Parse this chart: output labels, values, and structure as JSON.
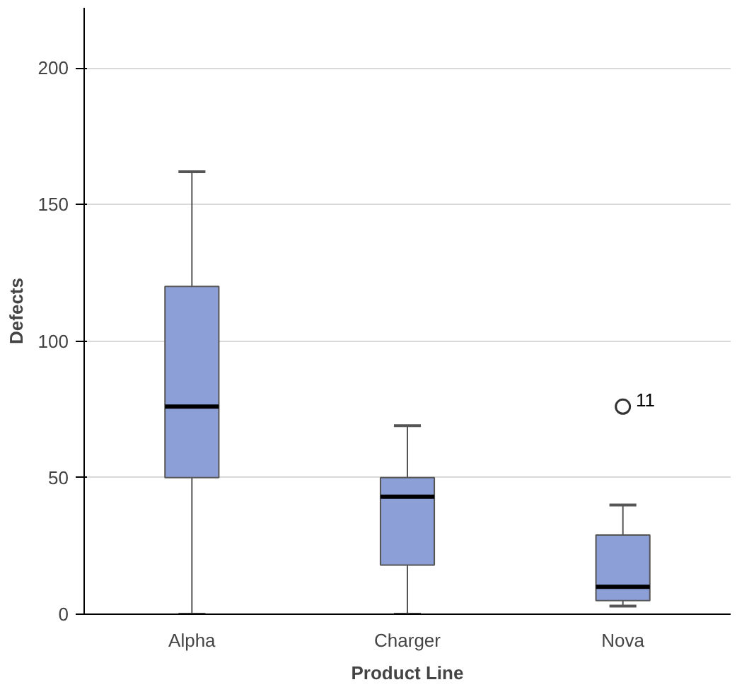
{
  "chart_data": {
    "type": "box",
    "xlabel": "Product Line",
    "ylabel": "Defects",
    "categories": [
      "Alpha",
      "Charger",
      "Nova"
    ],
    "boxes": [
      {
        "low": 0,
        "q1": 50,
        "median": 76,
        "q3": 120,
        "high": 162
      },
      {
        "low": 0,
        "q1": 18,
        "median": 43,
        "q3": 50,
        "high": 69
      },
      {
        "low": 3,
        "q1": 5,
        "median": 10,
        "q3": 29,
        "high": 40,
        "outliers": [
          76
        ]
      }
    ],
    "color": "#8c9fd6",
    "ylim": [
      0,
      222
    ],
    "yticks": [
      0,
      50,
      100,
      150,
      200
    ],
    "grid": "y",
    "annotations": [
      "11"
    ]
  }
}
